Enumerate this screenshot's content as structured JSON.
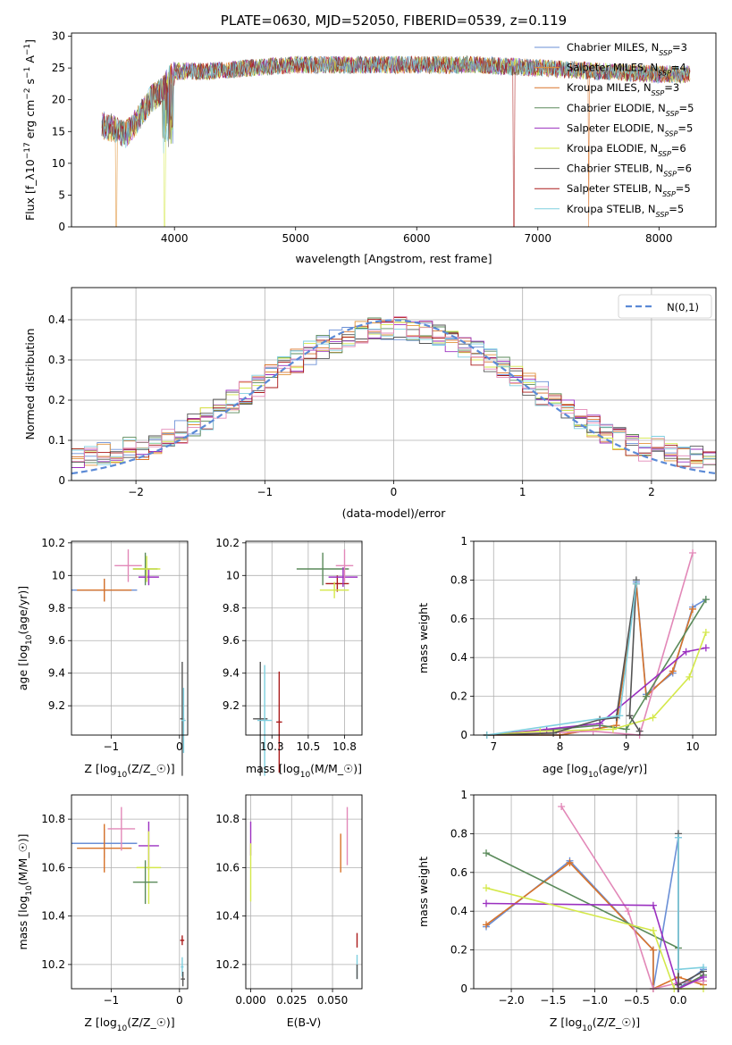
{
  "chart_data": [
    {
      "id": "spectrum",
      "type": "line",
      "title": "PLATE=0630, MJD=52050, FIBERID=0539, z=0.119",
      "xlabel": "wavelength [Angstrom, rest frame]",
      "ylabel": "Flux [f_λ 10^-17 erg cm^-2 s^-1 A^-1]",
      "xlim": [
        3150,
        8470
      ],
      "ylim": [
        0,
        30.5
      ],
      "xticks": [
        4000,
        5000,
        6000,
        7000,
        8000
      ],
      "yticks": [
        0,
        5,
        10,
        15,
        20,
        25,
        30
      ],
      "grid": false,
      "legend_position": "top-right",
      "series": [
        {
          "name": "Chabrier MILES, N_SSP=3",
          "color": "#6a8fd6"
        },
        {
          "name": "Salpeter MILES, N_SSP=4",
          "color": "#e0933a"
        },
        {
          "name": "Kroupa MILES, N_SSP=3",
          "color": "#d8732a"
        },
        {
          "name": "Chabrier ELODIE, N_SSP=5",
          "color": "#5a8a5a"
        },
        {
          "name": "Salpeter ELODIE, N_SSP=5",
          "color": "#9b30c0"
        },
        {
          "name": "Kroupa ELODIE, N_SSP=6",
          "color": "#d4e84a"
        },
        {
          "name": "Chabrier STELIB, N_SSP=6",
          "color": "#555555"
        },
        {
          "name": "Salpeter STELIB, N_SSP=5",
          "color": "#aa1a1a"
        },
        {
          "name": "Kroupa STELIB, N_SSP=5",
          "color": "#7ecfdf"
        }
      ],
      "continuum": [
        [
          3400,
          16
        ],
        [
          3500,
          15.5
        ],
        [
          3600,
          14.5
        ],
        [
          3700,
          17
        ],
        [
          3800,
          20
        ],
        [
          3900,
          21.5
        ],
        [
          4000,
          24.5
        ],
        [
          4300,
          24.5
        ],
        [
          4600,
          25
        ],
        [
          5000,
          25.5
        ],
        [
          5500,
          25.5
        ],
        [
          6000,
          25.5
        ],
        [
          6500,
          25.5
        ],
        [
          7000,
          25
        ],
        [
          7500,
          24.5
        ],
        [
          8000,
          24
        ],
        [
          8250,
          24
        ]
      ]
    },
    {
      "id": "residuals",
      "type": "line",
      "xlabel": "(data-model)/error",
      "ylabel": "Normed distribution",
      "xlim": [
        -2.5,
        2.5
      ],
      "ylim": [
        0,
        0.48
      ],
      "xticks": [
        -2,
        -1,
        0,
        1,
        2
      ],
      "yticks": [
        0.0,
        0.1,
        0.2,
        0.3,
        0.4
      ],
      "grid": true,
      "legend_position": "top-right",
      "legend": "N(0,1)",
      "normal_color": "#5b8ad6",
      "hist_colors": [
        "#6a8fd6",
        "#e0933a",
        "#d8732a",
        "#5a8a5a",
        "#9b30c0",
        "#d4e84a",
        "#555555",
        "#aa1a1a",
        "#7ecfdf",
        "#e288b8"
      ]
    },
    {
      "id": "age-z",
      "type": "scatter",
      "xlabel": "Z [log10(Z/Z☉)]",
      "ylabel": "age  [log10(age/yr)]",
      "xlim": [
        -1.58,
        0.12
      ],
      "ylim": [
        9.02,
        10.21
      ],
      "xticks": [
        -1,
        0
      ],
      "yticks": [
        9.2,
        9.4,
        9.6,
        9.8,
        10.0,
        10.2
      ],
      "points": [
        {
          "x": -1.1,
          "y": 9.91,
          "xerr": 0.48,
          "yerr": 0.07,
          "color": "#6a8fd6"
        },
        {
          "x": -1.1,
          "y": 9.91,
          "xerr": 0.4,
          "yerr": 0.07,
          "color": "#d8732a"
        },
        {
          "x": -0.75,
          "y": 10.06,
          "xerr": 0.2,
          "yerr": 0.1,
          "color": "#e288b8"
        },
        {
          "x": -0.5,
          "y": 10.04,
          "xerr": 0.18,
          "yerr": 0.1,
          "color": "#5a8a5a"
        },
        {
          "x": -0.45,
          "y": 9.99,
          "xerr": 0.15,
          "yerr": 0.05,
          "color": "#9b30c0"
        },
        {
          "x": -0.48,
          "y": 10.04,
          "xerr": 0.2,
          "yerr": 0.08,
          "color": "#d4e84a"
        },
        {
          "x": 0.04,
          "y": 9.12,
          "xerr": 0.03,
          "yerr": 0.35,
          "color": "#555555"
        },
        {
          "x": 0.06,
          "y": 9.11,
          "xerr": 0.03,
          "yerr": 0.2,
          "color": "#7ecfdf"
        }
      ]
    },
    {
      "id": "age-mass",
      "type": "scatter",
      "xlabel": "mass [log10(M/M☉)]",
      "ylabel": "",
      "xlim": [
        10.07,
        10.87
      ],
      "ylim": [
        9.02,
        10.21
      ],
      "xticks": [
        10.25,
        10.5,
        10.75
      ],
      "yticks": [
        9.2,
        9.4,
        9.6,
        9.8,
        10.0,
        10.2
      ],
      "points": [
        {
          "x": 10.6,
          "y": 10.04,
          "xerr": 0.18,
          "yerr": 0.1,
          "color": "#5a8a5a"
        },
        {
          "x": 10.7,
          "y": 9.95,
          "xerr": 0.08,
          "yerr": 0.05,
          "color": "#aa1a1a"
        },
        {
          "x": 10.74,
          "y": 9.99,
          "xerr": 0.1,
          "yerr": 0.06,
          "color": "#9b30c0"
        },
        {
          "x": 10.68,
          "y": 9.91,
          "xerr": 0.1,
          "yerr": 0.05,
          "color": "#d4e84a"
        },
        {
          "x": 10.75,
          "y": 10.06,
          "xerr": 0.06,
          "yerr": 0.1,
          "color": "#e288b8"
        },
        {
          "x": 10.17,
          "y": 9.12,
          "xerr": 0.05,
          "yerr": 0.35,
          "color": "#555555"
        },
        {
          "x": 10.2,
          "y": 9.11,
          "xerr": 0.05,
          "yerr": 0.34,
          "color": "#7ecfdf"
        },
        {
          "x": 10.3,
          "y": 9.1,
          "xerr": 0.02,
          "yerr": 0.31,
          "color": "#aa1a1a"
        }
      ]
    },
    {
      "id": "mass-weight-age",
      "type": "line",
      "xlabel": "age  [log10(age/yr)]",
      "ylabel": "mass weight",
      "xlim": [
        6.7,
        10.35
      ],
      "ylim": [
        0,
        1.0
      ],
      "xticks": [
        7,
        8,
        9,
        10
      ],
      "yticks": [
        0.0,
        0.2,
        0.4,
        0.6,
        0.8,
        1.0
      ],
      "grid": true,
      "series": [
        {
          "color": "#6a8fd6",
          "points": [
            [
              6.9,
              0.0
            ],
            [
              8.0,
              0.0
            ],
            [
              8.85,
              0.05
            ],
            [
              9.15,
              0.79
            ],
            [
              9.3,
              0.21
            ],
            [
              9.7,
              0.32
            ],
            [
              10.0,
              0.66
            ],
            [
              10.2,
              0.7
            ]
          ]
        },
        {
          "color": "#d8732a",
          "points": [
            [
              6.9,
              0.0
            ],
            [
              8.0,
              0.0
            ],
            [
              8.85,
              0.05
            ],
            [
              9.15,
              0.78
            ],
            [
              9.3,
              0.2
            ],
            [
              9.7,
              0.33
            ],
            [
              10.0,
              0.65
            ]
          ]
        },
        {
          "color": "#e288b8",
          "points": [
            [
              6.9,
              0.0
            ],
            [
              8.5,
              0.02
            ],
            [
              9.2,
              0.0
            ],
            [
              10.0,
              0.94
            ]
          ]
        },
        {
          "color": "#5a8a5a",
          "points": [
            [
              6.9,
              0.0
            ],
            [
              8.6,
              0.05
            ],
            [
              9.0,
              0.03
            ],
            [
              9.3,
              0.2
            ],
            [
              10.2,
              0.7
            ]
          ]
        },
        {
          "color": "#9b30c0",
          "points": [
            [
              6.9,
              0.0
            ],
            [
              7.8,
              0.03
            ],
            [
              8.6,
              0.06
            ],
            [
              9.9,
              0.43
            ],
            [
              10.2,
              0.45
            ]
          ]
        },
        {
          "color": "#d4e84a",
          "points": [
            [
              6.9,
              0.0
            ],
            [
              7.7,
              0.02
            ],
            [
              8.8,
              0.03
            ],
            [
              9.4,
              0.09
            ],
            [
              9.95,
              0.3
            ],
            [
              10.2,
              0.53
            ]
          ]
        },
        {
          "color": "#555555",
          "points": [
            [
              6.9,
              0.0
            ],
            [
              7.9,
              0.01
            ],
            [
              8.6,
              0.08
            ],
            [
              8.85,
              0.09
            ],
            [
              9.15,
              0.8
            ],
            [
              9.05,
              0.1
            ],
            [
              9.2,
              0.02
            ]
          ]
        },
        {
          "color": "#7ecfdf",
          "points": [
            [
              6.9,
              0.0
            ],
            [
              8.9,
              0.1
            ],
            [
              9.15,
              0.78
            ]
          ]
        }
      ]
    },
    {
      "id": "mass-z",
      "type": "scatter",
      "xlabel": "Z [log10(Z/Z☉)]",
      "ylabel": "mass [log10(M/M☉)]",
      "xlim": [
        -1.58,
        0.12
      ],
      "ylim": [
        10.1,
        10.9
      ],
      "xticks": [
        -1,
        0
      ],
      "yticks": [
        10.2,
        10.4,
        10.6,
        10.8
      ],
      "points": [
        {
          "x": -1.1,
          "y": 10.7,
          "xerr": 0.48,
          "yerr": 0.06,
          "color": "#6a8fd6"
        },
        {
          "x": -1.1,
          "y": 10.68,
          "xerr": 0.4,
          "yerr": 0.1,
          "color": "#d8732a"
        },
        {
          "x": -0.85,
          "y": 10.76,
          "xerr": 0.2,
          "yerr": 0.09,
          "color": "#e288b8"
        },
        {
          "x": -0.45,
          "y": 10.69,
          "xerr": 0.15,
          "yerr": 0.1,
          "color": "#9b30c0"
        },
        {
          "x": -0.45,
          "y": 10.6,
          "xerr": 0.18,
          "yerr": 0.15,
          "color": "#d4e84a"
        },
        {
          "x": -0.5,
          "y": 10.54,
          "xerr": 0.18,
          "yerr": 0.09,
          "color": "#5a8a5a"
        },
        {
          "x": 0.04,
          "y": 10.3,
          "xerr": 0.03,
          "yerr": 0.02,
          "color": "#aa1a1a"
        },
        {
          "x": 0.04,
          "y": 10.19,
          "xerr": 0.02,
          "yerr": 0.04,
          "color": "#7ecfdf"
        },
        {
          "x": 0.05,
          "y": 10.14,
          "xerr": 0.03,
          "yerr": 0.03,
          "color": "#555555"
        }
      ]
    },
    {
      "id": "mass-ebv",
      "type": "scatter",
      "xlabel": "E(B-V)",
      "ylabel": "",
      "xlim": [
        -0.003,
        0.068
      ],
      "ylim": [
        10.1,
        10.9
      ],
      "xticks": [
        0.0,
        0.025,
        0.05
      ],
      "xtick_labels": [
        "0.000",
        "0.025",
        "0.050"
      ],
      "yticks": [
        10.2,
        10.4,
        10.6,
        10.8
      ],
      "points": [
        {
          "x": 0.0,
          "y": 10.72,
          "yerr": 0.07,
          "color": "#9b30c0"
        },
        {
          "x": 0.0,
          "y": 10.58,
          "yerr": 0.12,
          "color": "#d4e84a"
        },
        {
          "x": 0.055,
          "y": 10.66,
          "yerr": 0.08,
          "color": "#d8732a"
        },
        {
          "x": 0.059,
          "y": 10.73,
          "yerr": 0.12,
          "color": "#e288b8"
        },
        {
          "x": 0.065,
          "y": 10.3,
          "yerr": 0.03,
          "color": "#aa1a1a"
        },
        {
          "x": 0.065,
          "y": 10.19,
          "yerr": 0.05,
          "color": "#7ecfdf"
        },
        {
          "x": 0.065,
          "y": 10.17,
          "yerr": 0.03,
          "color": "#555555"
        }
      ]
    },
    {
      "id": "mass-weight-z",
      "type": "line",
      "xlabel": "Z [log10(Z/Z☉)]",
      "ylabel": "mass weight",
      "xlim": [
        -2.45,
        0.45
      ],
      "ylim": [
        0,
        1.0
      ],
      "xticks": [
        -2.0,
        -1.5,
        -1.0,
        -0.5,
        0.0
      ],
      "xtick_labels": [
        "−2.0",
        "−1.5",
        "−1.0",
        "−0.5",
        "0.0"
      ],
      "yticks": [
        0.0,
        0.2,
        0.4,
        0.6,
        0.8,
        1.0
      ],
      "grid": true,
      "series": [
        {
          "color": "#6a8fd6",
          "points": [
            [
              -2.3,
              0.32
            ],
            [
              -1.3,
              0.66
            ],
            [
              -0.3,
              0.2
            ],
            [
              -0.3,
              0.0
            ],
            [
              0.0,
              0.78
            ],
            [
              0.0,
              0.0
            ],
            [
              0.3,
              0.1
            ]
          ]
        },
        {
          "color": "#d8732a",
          "points": [
            [
              -2.3,
              0.33
            ],
            [
              -1.3,
              0.65
            ],
            [
              -0.3,
              0.2
            ],
            [
              -0.3,
              0.0
            ],
            [
              0.0,
              0.06
            ],
            [
              0.3,
              0.02
            ]
          ]
        },
        {
          "color": "#e288b8",
          "points": [
            [
              -1.4,
              0.94
            ],
            [
              -0.6,
              0.4
            ],
            [
              -0.3,
              0.0
            ],
            [
              0.0,
              0.03
            ],
            [
              0.3,
              0.04
            ]
          ]
        },
        {
          "color": "#5a8a5a",
          "points": [
            [
              -2.3,
              0.7
            ],
            [
              0.0,
              0.21
            ],
            [
              0.0,
              0.0
            ],
            [
              0.3,
              0.07
            ]
          ]
        },
        {
          "color": "#9b30c0",
          "points": [
            [
              -2.3,
              0.44
            ],
            [
              -0.3,
              0.43
            ],
            [
              0.0,
              0.0
            ],
            [
              0.3,
              0.06
            ]
          ]
        },
        {
          "color": "#d4e84a",
          "points": [
            [
              -2.3,
              0.52
            ],
            [
              -0.3,
              0.3
            ],
            [
              -0.05,
              0.0
            ],
            [
              0.3,
              0.0
            ]
          ]
        },
        {
          "color": "#555555",
          "points": [
            [
              0.0,
              0.8
            ],
            [
              0.0,
              0.02
            ],
            [
              0.3,
              0.09
            ]
          ]
        },
        {
          "color": "#7ecfdf",
          "points": [
            [
              0.0,
              0.78
            ],
            [
              0.0,
              0.1
            ],
            [
              0.3,
              0.11
            ]
          ]
        }
      ]
    }
  ]
}
